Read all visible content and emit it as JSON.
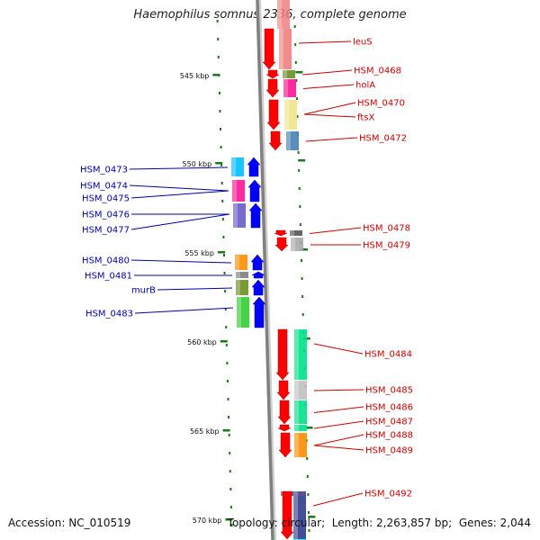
{
  "title": "Haemophilus somnus 2336, complete genome",
  "footer": {
    "accession_label": "Accession:",
    "accession": "NC_010519",
    "topology_label": "Topology:",
    "topology": "circular",
    "length_label": "Length:",
    "length": "2,263,857 bp",
    "genes_label": "Genes:",
    "genes": "2,044"
  },
  "colors": {
    "forward_label": "#cc0000",
    "reverse_label": "#0000aa",
    "forward_arrow": "#ff0000",
    "reverse_arrow": "#0000ff",
    "tick": "#1a7a1a",
    "backbone": "#808080"
  },
  "scale_labels": [
    "545 kbp",
    "550 kbp",
    "555 kbp",
    "560 kbp",
    "565 kbp",
    "570 kbp"
  ],
  "genes": [
    {
      "label": "leuS",
      "strand": "+",
      "color": "#f08080"
    },
    {
      "label": "HSM_0468",
      "strand": "+",
      "color": "#6b8e23"
    },
    {
      "label": "holA",
      "strand": "+",
      "color": "#ff1493"
    },
    {
      "label": "HSM_0470",
      "strand": "+",
      "color": "#f0e68c"
    },
    {
      "label": "ftsX",
      "strand": "+",
      "color": "#f0e68c"
    },
    {
      "label": "HSM_0472",
      "strand": "+",
      "color": "#4682b4"
    },
    {
      "label": "HSM_0473",
      "strand": "-",
      "color": "#00bfff"
    },
    {
      "label": "HSM_0474",
      "strand": "-",
      "color": "#ff1493"
    },
    {
      "label": "HSM_0475",
      "strand": "-",
      "color": "#ff1493"
    },
    {
      "label": "HSM_0476",
      "strand": "-",
      "color": "#6a5acd"
    },
    {
      "label": "HSM_0477",
      "strand": "-",
      "color": "#6a5acd"
    },
    {
      "label": "HSM_0478",
      "strand": "+",
      "color": "#555555"
    },
    {
      "label": "HSM_0479",
      "strand": "+",
      "color": "#a9a9a9"
    },
    {
      "label": "HSM_0480",
      "strand": "-",
      "color": "#ff8c00"
    },
    {
      "label": "HSM_0481",
      "strand": "-",
      "color": "#808080"
    },
    {
      "label": "murB",
      "strand": "-",
      "color": "#6b8e23"
    },
    {
      "label": "HSM_0483",
      "strand": "-",
      "color": "#32cd32"
    },
    {
      "label": "HSM_0484",
      "strand": "+",
      "color": "#00e08a"
    },
    {
      "label": "HSM_0485",
      "strand": "+",
      "color": "#c0c0c0"
    },
    {
      "label": "HSM_0486",
      "strand": "+",
      "color": "#00e08a"
    },
    {
      "label": "HSM_0487",
      "strand": "+",
      "color": "#00e08a"
    },
    {
      "label": "HSM_0488",
      "strand": "+",
      "color": "#ff8c00"
    },
    {
      "label": "HSM_0489",
      "strand": "+",
      "color": "#ff8c00"
    },
    {
      "label": "HSM_0492",
      "strand": "+",
      "color": "#483d8b"
    }
  ]
}
